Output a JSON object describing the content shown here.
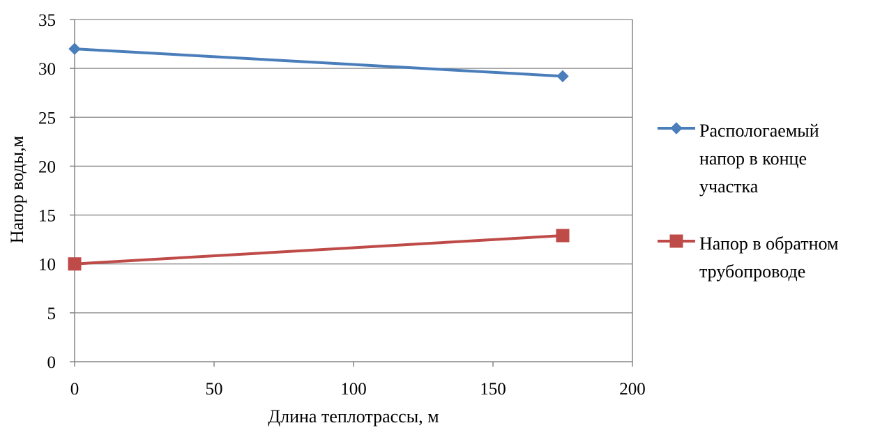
{
  "chart_data": {
    "type": "line",
    "title": "",
    "xlabel": "Длина теплотрассы, м",
    "ylabel": "Напор воды,м",
    "xlim": [
      0,
      200
    ],
    "ylim": [
      0,
      35
    ],
    "xticks": [
      0,
      50,
      100,
      150,
      200
    ],
    "yticks": [
      0,
      5,
      10,
      15,
      20,
      25,
      30,
      35
    ],
    "grid": "horizontal",
    "legend_position": "right",
    "series": [
      {
        "name_lines": [
          "Распологаемый",
          "напор в конце",
          "участка"
        ],
        "name": "Распологаемый напор в конце участка",
        "color": "#4a7ebb",
        "marker": "diamond",
        "x": [
          0,
          175
        ],
        "y": [
          32,
          29.2
        ]
      },
      {
        "name_lines": [
          "Напор в обратном",
          "трубопроводе"
        ],
        "name": "Напор в обратном трубопроводе",
        "color": "#be4b48",
        "marker": "square",
        "x": [
          0,
          175
        ],
        "y": [
          10,
          12.9
        ]
      }
    ]
  }
}
